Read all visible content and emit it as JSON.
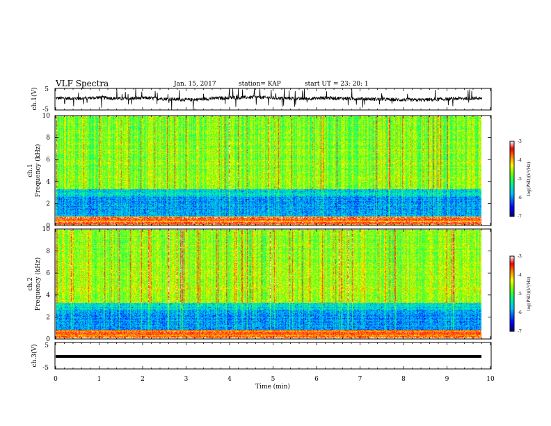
{
  "header": {
    "title": "VLF Spectra",
    "date": "Jan. 15, 2017",
    "station": "station= KAP",
    "start": "start  UT =  23: 20: 1"
  },
  "chart_data": [
    {
      "type": "line",
      "panel": "ch1-waveform",
      "ylabel": "ch.1(V)",
      "ylim": [
        -5,
        5
      ],
      "yticks": [
        "5",
        "-5"
      ],
      "xlim": [
        0,
        10
      ],
      "series": [
        {
          "values_approx": [
            0.5,
            0.3,
            0.8,
            0.2,
            0.6,
            0.1,
            -0.3,
            0.4,
            0.7,
            0.9,
            0.5,
            0.2,
            0.6,
            0.4,
            0.1,
            -0.2,
            -0.4,
            -0.1,
            0.3,
            0.5
          ],
          "color": "#000000"
        }
      ]
    },
    {
      "type": "heatmap",
      "panel": "ch1-spectrogram",
      "ylabel": "ch.1\nFrequency (kHz)",
      "ylabel_line1": "ch.1",
      "ylabel_line2": "Frequency (kHz)",
      "ylim": [
        0,
        10
      ],
      "yticks": [
        "0",
        "2",
        "4",
        "6",
        "8",
        "10"
      ],
      "xlim": [
        0,
        10
      ],
      "colorbar": {
        "label": "log(PSD)(V²/Hz)",
        "range": [
          -7,
          -3
        ],
        "ticks": [
          "-3",
          "-4",
          "-5",
          "-6",
          "-7"
        ],
        "colors": [
          "#000080",
          "#0000ff",
          "#00c0ff",
          "#00ff80",
          "#80ff00",
          "#ffff00",
          "#ff8000",
          "#ff0000",
          "#ffffff"
        ]
      },
      "bands_khz": [
        {
          "range": [
            0,
            1
          ],
          "level": "high"
        },
        {
          "range": [
            1,
            3
          ],
          "level": "low"
        },
        {
          "range": [
            3,
            10
          ],
          "level": "mid"
        }
      ],
      "data_extent_min": 9.8
    },
    {
      "type": "heatmap",
      "panel": "ch2-spectrogram",
      "ylabel_line1": "ch.2",
      "ylabel_line2": "Frequency (kHz)",
      "ylim": [
        0,
        10
      ],
      "yticks": [
        "0",
        "2",
        "4",
        "6",
        "8",
        "10"
      ],
      "xlim": [
        0,
        10
      ],
      "colorbar": {
        "label": "log(PSD)(V²/Hz)",
        "range": [
          -7,
          -3
        ],
        "ticks": [
          "-3",
          "-4",
          "-5",
          "-6",
          "-7"
        ]
      },
      "bands_khz": [
        {
          "range": [
            0,
            0.5
          ],
          "level": "high"
        },
        {
          "range": [
            0.5,
            3
          ],
          "level": "low"
        },
        {
          "range": [
            3,
            10
          ],
          "level": "mid"
        }
      ],
      "data_extent_min": 9.8
    },
    {
      "type": "line",
      "panel": "ch3-waveform",
      "ylabel": "ch.3(V)",
      "ylim": [
        -5,
        5
      ],
      "yticks": [
        "5",
        "-5"
      ],
      "xlim": [
        0,
        10
      ],
      "series": [
        {
          "values": [
            -0.5,
            -0.5
          ],
          "x": [
            0,
            9.8
          ],
          "color": "#000000"
        }
      ]
    }
  ],
  "xaxis": {
    "label": "Time (min)",
    "ticks": [
      "0",
      "1",
      "2",
      "3",
      "4",
      "5",
      "6",
      "7",
      "8",
      "9",
      "10"
    ]
  }
}
